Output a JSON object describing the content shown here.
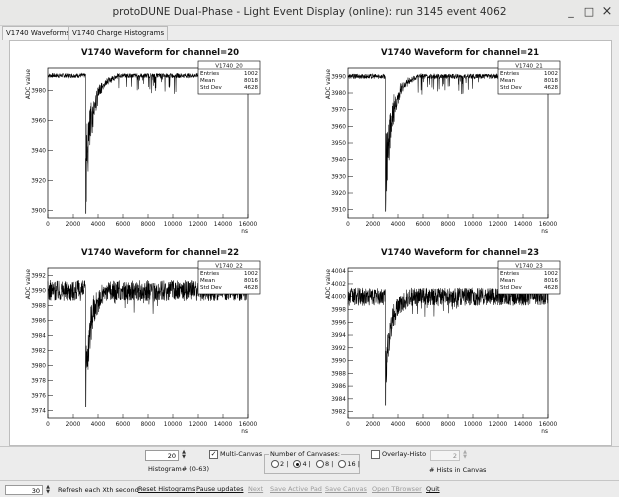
{
  "window": {
    "title": "protoDUNE Dual-Phase - Light Event Display (online): run 3145 event 4062",
    "minimize": "_",
    "maximize": "□",
    "close": "×"
  },
  "tabs": [
    {
      "label": "V1740 Waveforms",
      "active": true
    },
    {
      "label": "V1740 Charge Histograms",
      "active": false
    }
  ],
  "plots": [
    {
      "title": "V1740 Waveform for channel=20",
      "ylabel": "ADC value",
      "xlabel": "ns",
      "stats": {
        "name": "V1740_20",
        "entries_label": "Entries",
        "entries": "1002",
        "mean_label": "Mean",
        "mean": "8018",
        "std_label": "Std Dev",
        "std": "4628"
      }
    },
    {
      "title": "V1740 Waveform for channel=21",
      "ylabel": "ADC value",
      "xlabel": "ns",
      "stats": {
        "name": "V1740_21",
        "entries_label": "Entries",
        "entries": "1002",
        "mean_label": "Mean",
        "mean": "8018",
        "std_label": "Std Dev",
        "std": "4628"
      }
    },
    {
      "title": "V1740 Waveform for channel=22",
      "ylabel": "ADC value",
      "xlabel": "ns",
      "stats": {
        "name": "V1740_22",
        "entries_label": "Entries",
        "entries": "1002",
        "mean_label": "Mean",
        "mean": "8016",
        "std_label": "Std Dev",
        "std": "4628"
      }
    },
    {
      "title": "V1740 Waveform for channel=23",
      "ylabel": "ADC value",
      "xlabel": "ns",
      "stats": {
        "name": "V1740_23",
        "entries_label": "Entries",
        "entries": "1002",
        "mean_label": "Mean",
        "mean": "8016",
        "std_label": "Std Dev",
        "std": "4628"
      }
    }
  ],
  "chart_data": [
    {
      "type": "line",
      "title": "V1740 Waveform for channel=20",
      "xlabel": "ns",
      "ylabel": "ADC value",
      "xlim": [
        0,
        16000
      ],
      "ylim": [
        3895,
        3995
      ],
      "baseline": 3990,
      "noise": 1.5,
      "xticks": [
        0,
        2000,
        4000,
        6000,
        8000,
        10000,
        12000,
        14000,
        16000
      ],
      "yticks": [
        3900,
        3920,
        3940,
        3960,
        3980
      ],
      "pulse": {
        "x": 3000,
        "min": 3898,
        "recovery_ns": 2500
      }
    },
    {
      "type": "line",
      "title": "V1740 Waveform for channel=21",
      "xlabel": "ns",
      "ylabel": "ADC value",
      "xlim": [
        0,
        16000
      ],
      "ylim": [
        3905,
        3995
      ],
      "baseline": 3990,
      "noise": 1.5,
      "xticks": [
        0,
        2000,
        4000,
        6000,
        8000,
        10000,
        12000,
        14000,
        16000
      ],
      "yticks": [
        3910,
        3920,
        3930,
        3940,
        3950,
        3960,
        3970,
        3980,
        3990
      ],
      "pulse": {
        "x": 3000,
        "min": 3909,
        "recovery_ns": 2500
      }
    },
    {
      "type": "line",
      "title": "V1740 Waveform for channel=22",
      "xlabel": "ns",
      "ylabel": "ADC value",
      "xlim": [
        0,
        16000
      ],
      "ylim": [
        3973,
        3993
      ],
      "baseline": 3990,
      "noise": 1.4,
      "xticks": [
        0,
        2000,
        4000,
        6000,
        8000,
        10000,
        12000,
        14000,
        16000
      ],
      "yticks": [
        3974,
        3976,
        3978,
        3980,
        3982,
        3984,
        3986,
        3988,
        3990,
        3992
      ],
      "pulse": {
        "x": 3000,
        "min": 3974.5,
        "recovery_ns": 2000
      }
    },
    {
      "type": "line",
      "title": "V1740 Waveform for channel=23",
      "xlabel": "ns",
      "ylabel": "ADC value",
      "xlim": [
        0,
        16000
      ],
      "ylim": [
        3981,
        4004.5
      ],
      "baseline": 4000,
      "noise": 1.4,
      "xticks": [
        0,
        2000,
        4000,
        6000,
        8000,
        10000,
        12000,
        14000,
        16000
      ],
      "yticks": [
        3982,
        3984,
        3986,
        3988,
        3990,
        3992,
        3994,
        3996,
        3998,
        4000,
        4002,
        4004
      ],
      "pulse": {
        "x": 3000,
        "min": 3983,
        "recovery_ns": 2000
      }
    }
  ],
  "controls": {
    "histogram_value": "20",
    "histogram_label": "Histogram# (0-63)",
    "multi_canvas_label": "Multi-Canvas",
    "multi_canvas_checked": true,
    "canvases_group_label": "Number of Canvases:",
    "canvas_options": [
      {
        "label": "2",
        "checked": false
      },
      {
        "label": "4",
        "checked": true
      },
      {
        "label": "8",
        "checked": false
      },
      {
        "label": "16",
        "checked": false
      }
    ],
    "overlay_label": "Overlay-Histo",
    "overlay_checked": false,
    "hists_in_canvas_value": "2",
    "hists_in_canvas_label": "# Hists in Canvas"
  },
  "bottom": {
    "refresh_value": "30",
    "refresh_label": "Refresh each Xth second",
    "buttons": [
      {
        "label": "Reset Histograms",
        "enabled": true
      },
      {
        "label": "Pause updates",
        "enabled": true
      },
      {
        "label": "Next",
        "enabled": false
      },
      {
        "label": "Save Active Pad",
        "enabled": false
      },
      {
        "label": "Save Canvas",
        "enabled": false
      },
      {
        "label": "Open TBrowser",
        "enabled": false
      },
      {
        "label": "Quit",
        "enabled": true
      }
    ]
  }
}
